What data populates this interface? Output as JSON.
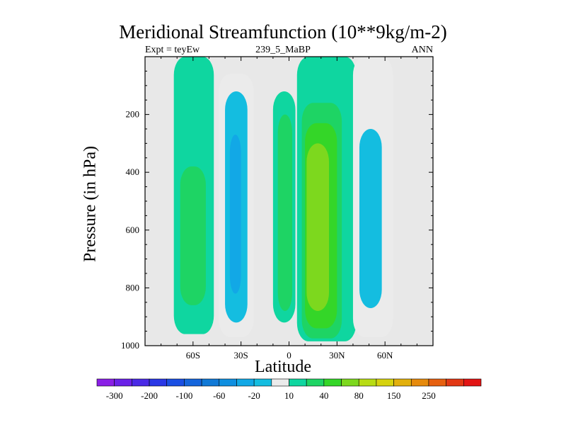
{
  "chart_data": {
    "type": "contour",
    "title": "Meridional Streamfunction (10**9kg/m-2)",
    "left_string": "Expt = teyEw",
    "center_string": "239_5_MaBP",
    "right_string": "ANN",
    "xlabel": "Latitude",
    "ylabel": "Pressure (in hPa)",
    "xlim": [
      -90,
      90
    ],
    "ylim": [
      1000,
      0
    ],
    "x_ticks": [
      {
        "value": -60,
        "label": "60S"
      },
      {
        "value": -30,
        "label": "30S"
      },
      {
        "value": 0,
        "label": "0"
      },
      {
        "value": 30,
        "label": "30N"
      },
      {
        "value": 60,
        "label": "60N"
      }
    ],
    "y_ticks": [
      {
        "value": 200,
        "label": "200"
      },
      {
        "value": 400,
        "label": "400"
      },
      {
        "value": 600,
        "label": "600"
      },
      {
        "value": 800,
        "label": "800"
      },
      {
        "value": 1000,
        "label": "1000"
      }
    ],
    "background_color": "#e8e8e8",
    "colorbar": {
      "levels": [
        -300,
        -250,
        -200,
        -150,
        -100,
        -80,
        -60,
        -40,
        -20,
        -10,
        10,
        20,
        40,
        60,
        80,
        100,
        150,
        200,
        250,
        300
      ],
      "labeled_levels": [
        "-300",
        "-200",
        "-100",
        "-60",
        "-20",
        "10",
        "40",
        "80",
        "150",
        "250"
      ],
      "colors": [
        "#8a1fe6",
        "#6a21e8",
        "#4a2ae6",
        "#2a38e6",
        "#1a4fe3",
        "#1465dc",
        "#1079d6",
        "#0f8fe0",
        "#12a8e6",
        "#14bde0",
        "#ebebeb",
        "#0fd6a0",
        "#1ed464",
        "#34d628",
        "#7dd81e",
        "#b8dc14",
        "#d6d20e",
        "#e2b00c",
        "#e68a0c",
        "#e66010",
        "#e23814",
        "#e21414"
      ]
    },
    "filled_regions": [
      {
        "name": "sh-polar-cell-outer",
        "level": 10,
        "lat_range": [
          -72,
          -47
        ],
        "p_range": [
          0,
          960
        ]
      },
      {
        "name": "sh-polar-cell-core",
        "level": 20,
        "lat_range": [
          -68,
          -52
        ],
        "p_range": [
          380,
          860
        ]
      },
      {
        "name": "sh-ferrel-cell-outer",
        "level": -10,
        "lat_range": [
          -44,
          -22
        ],
        "p_range": [
          60,
          970
        ]
      },
      {
        "name": "sh-ferrel-cell-mid",
        "level": -20,
        "lat_range": [
          -40,
          -26
        ],
        "p_range": [
          120,
          920
        ]
      },
      {
        "name": "sh-ferrel-cell-core",
        "level": -40,
        "lat_range": [
          -37,
          -30
        ],
        "p_range": [
          270,
          820
        ]
      },
      {
        "name": "sh-hadley-cell-outer",
        "level": 10,
        "lat_range": [
          -10,
          4
        ],
        "p_range": [
          120,
          920
        ]
      },
      {
        "name": "sh-hadley-cell-core",
        "level": 20,
        "lat_range": [
          -7,
          2
        ],
        "p_range": [
          200,
          880
        ]
      },
      {
        "name": "nh-hadley-cell-outer",
        "level": 10,
        "lat_range": [
          5,
          42
        ],
        "p_range": [
          0,
          985
        ]
      },
      {
        "name": "nh-hadley-cell-mid",
        "level": 20,
        "lat_range": [
          8,
          33
        ],
        "p_range": [
          160,
          975
        ]
      },
      {
        "name": "nh-hadley-cell-inner",
        "level": 40,
        "lat_range": [
          10,
          30
        ],
        "p_range": [
          230,
          940
        ]
      },
      {
        "name": "nh-hadley-cell-core",
        "level": 60,
        "lat_range": [
          11,
          25
        ],
        "p_range": [
          300,
          880
        ]
      },
      {
        "name": "nh-ferrel-cell-outer",
        "level": -10,
        "lat_range": [
          40,
          65
        ],
        "p_range": [
          0,
          970
        ]
      },
      {
        "name": "nh-ferrel-cell-core",
        "level": -20,
        "lat_range": [
          44,
          58
        ],
        "p_range": [
          250,
          870
        ]
      }
    ]
  }
}
